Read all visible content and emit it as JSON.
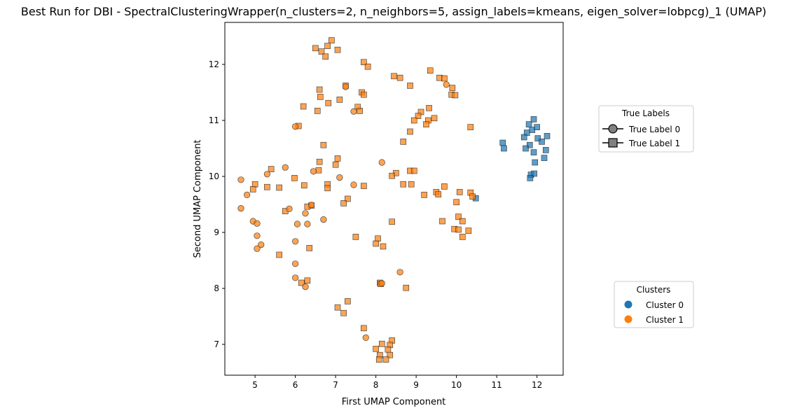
{
  "chart_data": {
    "type": "scatter",
    "title": "Best Run for DBI - SpectralClusteringWrapper(n_clusters=2, n_neighbors=5, assign_labels=kmeans, eigen_solver=lobpcg)_1 (UMAP)",
    "xlabel": "First UMAP Component",
    "ylabel": "Second UMAP Component",
    "xlim": [
      4.25,
      12.65
    ],
    "ylim": [
      6.45,
      12.75
    ],
    "xticks": [
      5,
      6,
      7,
      8,
      9,
      10,
      11,
      12
    ],
    "yticks": [
      7,
      8,
      9,
      10,
      11,
      12
    ],
    "grid": false,
    "colors": {
      "cluster_0": "#1f77b4",
      "cluster_1": "#ff7f0e",
      "marker_edge": "#333333",
      "legend_marker": "#808080"
    },
    "legends": {
      "true_labels": {
        "title": "True Labels",
        "placement": "right-upper",
        "entries": [
          {
            "label": "True Label 0",
            "marker": "circle"
          },
          {
            "label": "True Label 1",
            "marker": "square"
          }
        ]
      },
      "clusters": {
        "title": "Clusters",
        "placement": "right-lower",
        "entries": [
          {
            "label": "Cluster 0",
            "color": "#1f77b4"
          },
          {
            "label": "Cluster 1",
            "color": "#ff7f0e"
          }
        ]
      }
    },
    "series": [
      {
        "cluster": 0,
        "true_label": 1,
        "marker": "square",
        "points": [
          [
            11.92,
            11.02
          ],
          [
            11.8,
            10.93
          ],
          [
            11.88,
            10.83
          ],
          [
            12.0,
            10.88
          ],
          [
            11.75,
            10.78
          ],
          [
            11.68,
            10.7
          ],
          [
            12.25,
            10.72
          ],
          [
            12.02,
            10.68
          ],
          [
            12.12,
            10.62
          ],
          [
            11.82,
            10.56
          ],
          [
            11.72,
            10.5
          ],
          [
            12.22,
            10.47
          ],
          [
            11.92,
            10.43
          ],
          [
            12.18,
            10.33
          ],
          [
            11.95,
            10.25
          ],
          [
            11.85,
            10.03
          ],
          [
            11.93,
            10.05
          ],
          [
            11.83,
            9.97
          ],
          [
            11.15,
            10.6
          ],
          [
            11.18,
            10.5
          ],
          [
            10.48,
            9.61
          ]
        ]
      },
      {
        "cluster": 1,
        "true_label": 1,
        "marker": "square",
        "points": [
          [
            6.9,
            12.43
          ],
          [
            6.5,
            12.29
          ],
          [
            6.8,
            12.33
          ],
          [
            7.05,
            12.26
          ],
          [
            6.65,
            12.23
          ],
          [
            6.75,
            12.14
          ],
          [
            7.7,
            12.04
          ],
          [
            7.8,
            11.96
          ],
          [
            9.35,
            11.89
          ],
          [
            8.45,
            11.79
          ],
          [
            8.6,
            11.76
          ],
          [
            9.58,
            11.76
          ],
          [
            9.7,
            11.75
          ],
          [
            8.85,
            11.62
          ],
          [
            9.9,
            11.58
          ],
          [
            7.25,
            11.62
          ],
          [
            6.6,
            11.55
          ],
          [
            7.65,
            11.5
          ],
          [
            7.7,
            11.46
          ],
          [
            9.88,
            11.46
          ],
          [
            9.97,
            11.45
          ],
          [
            6.62,
            11.42
          ],
          [
            7.1,
            11.37
          ],
          [
            6.82,
            11.31
          ],
          [
            6.2,
            11.25
          ],
          [
            9.32,
            11.22
          ],
          [
            7.55,
            11.24
          ],
          [
            6.55,
            11.17
          ],
          [
            7.6,
            11.17
          ],
          [
            9.12,
            11.15
          ],
          [
            9.05,
            11.08
          ],
          [
            9.45,
            11.04
          ],
          [
            9.3,
            11.0
          ],
          [
            8.95,
            11.0
          ],
          [
            9.25,
            10.93
          ],
          [
            10.35,
            10.88
          ],
          [
            6.08,
            10.9
          ],
          [
            8.85,
            10.8
          ],
          [
            8.68,
            10.62
          ],
          [
            6.7,
            10.56
          ],
          [
            7.05,
            10.32
          ],
          [
            6.6,
            10.26
          ],
          [
            7.0,
            10.21
          ],
          [
            5.4,
            10.13
          ],
          [
            6.58,
            10.11
          ],
          [
            8.5,
            10.06
          ],
          [
            8.85,
            10.1
          ],
          [
            8.95,
            10.1
          ],
          [
            8.4,
            10.01
          ],
          [
            5.98,
            9.97
          ],
          [
            5.0,
            9.86
          ],
          [
            5.3,
            9.81
          ],
          [
            5.6,
            9.8
          ],
          [
            8.68,
            9.86
          ],
          [
            8.88,
            9.86
          ],
          [
            6.8,
            9.86
          ],
          [
            6.22,
            9.84
          ],
          [
            7.7,
            9.83
          ],
          [
            9.7,
            9.82
          ],
          [
            4.95,
            9.77
          ],
          [
            6.8,
            9.79
          ],
          [
            9.5,
            9.72
          ],
          [
            10.08,
            9.72
          ],
          [
            10.35,
            9.71
          ],
          [
            9.55,
            9.68
          ],
          [
            9.2,
            9.67
          ],
          [
            10.4,
            9.64
          ],
          [
            7.3,
            9.6
          ],
          [
            10.0,
            9.54
          ],
          [
            7.2,
            9.52
          ],
          [
            6.4,
            9.48
          ],
          [
            5.75,
            9.38
          ],
          [
            6.3,
            9.46
          ],
          [
            10.05,
            9.28
          ],
          [
            9.65,
            9.2
          ],
          [
            10.15,
            9.2
          ],
          [
            8.4,
            9.19
          ],
          [
            9.95,
            9.06
          ],
          [
            10.05,
            9.05
          ],
          [
            10.3,
            9.03
          ],
          [
            10.15,
            8.92
          ],
          [
            7.5,
            8.92
          ],
          [
            8.05,
            8.89
          ],
          [
            8.0,
            8.8
          ],
          [
            8.18,
            8.75
          ],
          [
            6.35,
            8.72
          ],
          [
            5.6,
            8.6
          ],
          [
            8.1,
            8.1
          ],
          [
            8.12,
            8.08
          ],
          [
            6.15,
            8.1
          ],
          [
            6.3,
            8.14
          ],
          [
            8.75,
            8.01
          ],
          [
            7.3,
            7.77
          ],
          [
            7.05,
            7.66
          ],
          [
            7.2,
            7.56
          ],
          [
            7.7,
            7.29
          ],
          [
            8.4,
            7.07
          ],
          [
            8.15,
            7.01
          ],
          [
            8.35,
            6.99
          ],
          [
            8.0,
            6.92
          ],
          [
            8.3,
            6.91
          ],
          [
            8.1,
            6.81
          ],
          [
            8.35,
            6.81
          ],
          [
            8.08,
            6.73
          ],
          [
            8.25,
            6.73
          ]
        ]
      },
      {
        "cluster": 1,
        "true_label": 0,
        "marker": "circle",
        "points": [
          [
            9.75,
            11.64
          ],
          [
            7.25,
            11.6
          ],
          [
            7.45,
            11.16
          ],
          [
            6.0,
            10.89
          ],
          [
            8.15,
            10.25
          ],
          [
            5.75,
            10.16
          ],
          [
            6.45,
            10.09
          ],
          [
            5.3,
            10.04
          ],
          [
            7.1,
            9.98
          ],
          [
            4.65,
            9.94
          ],
          [
            7.45,
            9.85
          ],
          [
            4.8,
            9.67
          ],
          [
            6.4,
            9.49
          ],
          [
            4.65,
            9.43
          ],
          [
            5.85,
            9.42
          ],
          [
            6.25,
            9.34
          ],
          [
            6.7,
            9.23
          ],
          [
            4.95,
            9.2
          ],
          [
            5.05,
            9.16
          ],
          [
            6.05,
            9.15
          ],
          [
            6.3,
            9.15
          ],
          [
            5.05,
            8.94
          ],
          [
            6.0,
            8.84
          ],
          [
            5.15,
            8.78
          ],
          [
            5.05,
            8.71
          ],
          [
            6.0,
            8.44
          ],
          [
            8.6,
            8.29
          ],
          [
            6.0,
            8.19
          ],
          [
            8.15,
            8.09
          ],
          [
            6.25,
            8.03
          ],
          [
            7.75,
            7.12
          ]
        ]
      }
    ]
  }
}
